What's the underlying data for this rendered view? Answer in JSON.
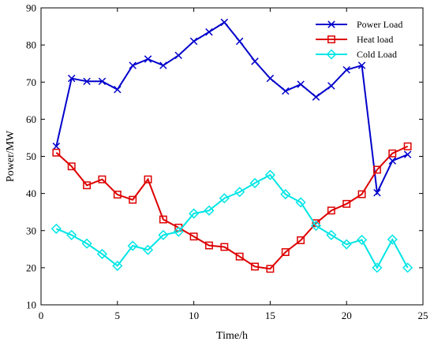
{
  "chart_data": {
    "type": "line",
    "xlabel": "Time/h",
    "ylabel": "Power/MW",
    "xlim": [
      0,
      25
    ],
    "ylim": [
      10,
      90
    ],
    "xticks": [
      0,
      5,
      10,
      15,
      20,
      25
    ],
    "yticks": [
      10,
      20,
      30,
      40,
      50,
      60,
      70,
      80,
      90
    ],
    "grid": false,
    "legend_position": "top-right",
    "x": [
      1,
      2,
      3,
      4,
      5,
      6,
      7,
      8,
      9,
      10,
      11,
      12,
      13,
      14,
      15,
      16,
      17,
      18,
      19,
      20,
      21,
      22,
      23,
      24
    ],
    "series": [
      {
        "name": "Power Load",
        "color": "#0000CC",
        "marker": "x",
        "values": [
          52.7,
          71.0,
          70.2,
          70.2,
          68.0,
          74.5,
          76.2,
          74.5,
          77.2,
          81.0,
          83.5,
          86.1,
          81.0,
          75.6,
          71.0,
          67.6,
          69.4,
          66.0,
          69.0,
          73.3,
          74.5,
          40.2,
          48.8,
          50.5
        ]
      },
      {
        "name": "Heat load",
        "color": "#DD0000",
        "marker": "square",
        "values": [
          51.0,
          47.3,
          42.2,
          43.8,
          39.7,
          38.3,
          43.8,
          33.0,
          30.8,
          28.4,
          26.0,
          25.6,
          23.0,
          20.3,
          19.7,
          24.2,
          27.4,
          32.0,
          35.4,
          37.2,
          39.8,
          46.4,
          50.8,
          52.7
        ]
      },
      {
        "name": "Cold Load",
        "color": "#00E5E5",
        "marker": "diamond",
        "values": [
          30.5,
          28.8,
          26.5,
          23.7,
          20.5,
          25.9,
          24.8,
          28.8,
          29.7,
          34.6,
          35.4,
          38.7,
          40.4,
          42.8,
          45.0,
          39.8,
          37.6,
          31.3,
          28.8,
          26.3,
          27.5,
          20.0,
          27.6,
          20.0
        ]
      }
    ]
  }
}
